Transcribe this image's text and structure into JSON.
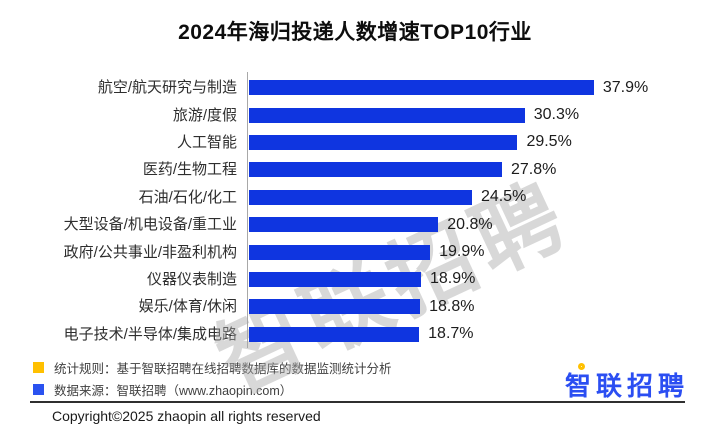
{
  "title": "2024年海归投递人数增速TOP10行业",
  "chart_data": {
    "type": "bar",
    "orientation": "horizontal",
    "title": "2024年海归投递人数增速TOP10行业",
    "categories": [
      "航空/航天研究与制造",
      "旅游/度假",
      "人工智能",
      "医药/生物工程",
      "石油/石化/化工",
      "大型设备/机电设备/重工业",
      "政府/公共事业/非盈利机构",
      "仪器仪表制造",
      "娱乐/体育/休闲",
      "电子技术/半导体/集成电路"
    ],
    "values": [
      37.9,
      30.3,
      29.5,
      27.8,
      24.5,
      20.8,
      19.9,
      18.9,
      18.8,
      18.7
    ],
    "value_labels": [
      "37.9%",
      "30.3%",
      "29.5%",
      "27.8%",
      "24.5%",
      "20.8%",
      "19.9%",
      "18.9%",
      "18.8%",
      "18.7%"
    ],
    "xlim": [
      0,
      40
    ],
    "bar_color": "#0f35e0",
    "grid": false,
    "legend": "none",
    "value_label_position": "end-of-bar"
  },
  "watermark": "智联招聘",
  "footnotes": [
    {
      "marker_color": "#FFC000",
      "text": "统计规则：基于智联招聘在线招聘数据库的数据监测统计分析"
    },
    {
      "marker_color": "#2a52f0",
      "text": "数据来源：智联招聘（www.zhaopin.com）"
    }
  ],
  "logo": {
    "text": "智联招聘",
    "color": "#2b4ef2",
    "accent_color": "#FFC000"
  },
  "copyright": "Copyright©2025 zhaopin all rights reserved"
}
